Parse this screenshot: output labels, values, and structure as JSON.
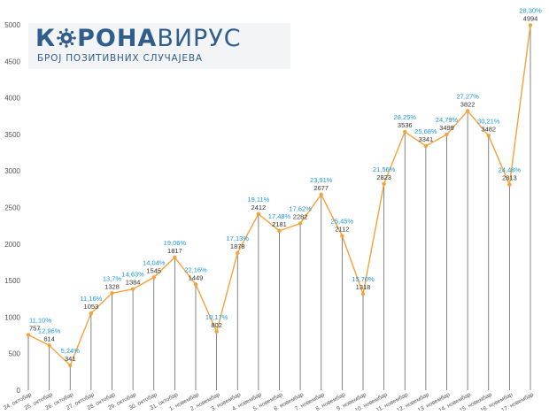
{
  "logo": {
    "title_part1": "К",
    "title_part2": "РОНА",
    "title_part3": "ВИРУС",
    "subtitle": "БРОЈ ПОЗИТИВНИХ СЛУЧАЈЕВА",
    "icon": "virus-icon"
  },
  "colors": {
    "line": "#f5a23a",
    "marker": "#f5a23a",
    "percent_label": "#1a9ad6",
    "value_label": "#333333",
    "drop_line": "#666666",
    "axis_text": "#555555",
    "logo_blue": "#2f5d8c"
  },
  "chart_data": {
    "type": "line",
    "categories": [
      "24. октобар",
      "25. октобар",
      "26. октобар",
      "27. октобар",
      "28. октобар",
      "29. октобар",
      "30. октобар",
      "31. октобар",
      "1. новембар",
      "2. новембар",
      "3. новембар",
      "4. новембар",
      "5. новембар",
      "6. новембар",
      "7. новембар",
      "8. новембар",
      "9. новембар",
      "10. новембар",
      "11. новембар",
      "12. новембар",
      "13. новембар",
      "14. новембар",
      "15. новембар",
      "16. новембар",
      "17. новембар"
    ],
    "values": [
      757,
      614,
      341,
      1053,
      1328,
      1384,
      1545,
      1817,
      1449,
      802,
      1878,
      2412,
      2181,
      2282,
      2677,
      2112,
      1318,
      2823,
      3536,
      3341,
      3499,
      3822,
      3482,
      2813,
      4994
    ],
    "value_labels": [
      "757",
      "614",
      "341",
      "1053",
      "1328",
      "1384",
      "1545",
      "1817",
      "1449",
      "802",
      "1878",
      "2412",
      "2181",
      "2282",
      "2677",
      "2112",
      "1318",
      "2823",
      "3536",
      "3341",
      "3499",
      "3822",
      "3482",
      "2813",
      "4994"
    ],
    "percent_labels": [
      "11,10%",
      "12,96%",
      "5,24%",
      "11,16%",
      "13,7%",
      "14,63%",
      "14,04%",
      "19,06%",
      "22,16%",
      "10,17%",
      "17,13%",
      "19,11%",
      "17,48%",
      "17,62%",
      "23,91%",
      "25,45%",
      "15,70%",
      "21,56%",
      "28,25%",
      "25,68%",
      "24,79%",
      "27,27%",
      "30,21%",
      "24,48%",
      "28,30%"
    ],
    "y_ticks": [
      "0",
      "500",
      "1000",
      "1500",
      "2000",
      "2500",
      "3000",
      "3500",
      "4000",
      "4500",
      "5000"
    ],
    "ylim": [
      0,
      5000
    ],
    "grid": false,
    "title": "",
    "xlabel": "",
    "ylabel": ""
  }
}
